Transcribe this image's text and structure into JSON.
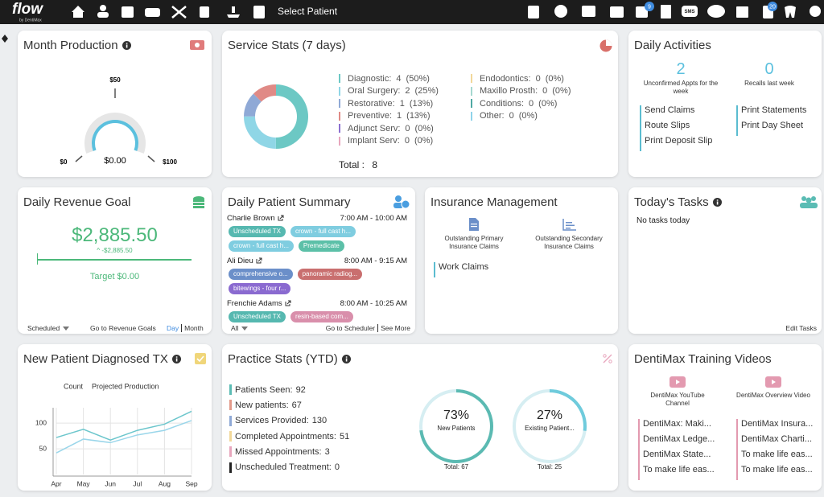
{
  "nav": {
    "logo": "flow",
    "logo_sub": "by DentiMax",
    "select_patient": "Select Patient",
    "sms": "SMS",
    "badge_checks": "9",
    "badge_docs": "20"
  },
  "month_production": {
    "title": "Month Production",
    "gauge": {
      "mid": "$50",
      "min": "$0",
      "max": "$100",
      "value": "$0.00"
    }
  },
  "service_stats": {
    "title": "Service Stats (7 days)",
    "items": [
      {
        "label": "Diagnostic:",
        "count": 4,
        "percent": "(50%)",
        "color": "#6cc8c4"
      },
      {
        "label": "Oral Surgery:",
        "count": 2,
        "percent": "(25%)",
        "color": "#8fd6e6"
      },
      {
        "label": "Restorative:",
        "count": 1,
        "percent": "(13%)",
        "color": "#8fa9d6"
      },
      {
        "label": "Preventive:",
        "count": 1,
        "percent": "(13%)",
        "color": "#e08a86"
      },
      {
        "label": "Adjunct Serv:",
        "count": 0,
        "percent": "(0%)",
        "color": "#8c6fd0"
      },
      {
        "label": "Implant Serv:",
        "count": 0,
        "percent": "(0%)",
        "color": "#e8a6bd"
      },
      {
        "label": "Endodontics:",
        "count": 0,
        "percent": "(0%)",
        "color": "#f2d89a"
      },
      {
        "label": "Maxillo Prosth:",
        "count": 0,
        "percent": "(0%)",
        "color": "#a5d8cf"
      },
      {
        "label": "Conditions:",
        "count": 0,
        "percent": "(0%)",
        "color": "#4fa9a3"
      },
      {
        "label": "Other:",
        "count": 0,
        "percent": "(0%)",
        "color": "#8fd3ea"
      }
    ],
    "total_label": "Total :",
    "total": 8
  },
  "daily_activities": {
    "title": "Daily Activities",
    "stats": [
      {
        "value": 2,
        "label": "Unconfirmed Appts for the week"
      },
      {
        "value": 0,
        "label": "Recalls last week"
      }
    ],
    "links": [
      "Send Claims",
      "Route Slips",
      "Print Deposit Slip",
      "Print Statements",
      "Print Day Sheet"
    ]
  },
  "daily_revenue": {
    "title": "Daily Revenue Goal",
    "amount": "$2,885.50",
    "change": "^ -$2,885.50",
    "target": "Target $0.00",
    "filter": "Scheduled",
    "link": "Go to Revenue Goals",
    "period_day": "Day",
    "period_month": "Month"
  },
  "patient_summary": {
    "title": "Daily Patient Summary",
    "patients": [
      {
        "name": "Charlie Brown",
        "time": "7:00 AM - 10:00 AM",
        "tags": [
          {
            "text": "Unscheduled TX",
            "color": "#56b8b0"
          },
          {
            "text": "crown - full cast h...",
            "color": "#7fcde0"
          },
          {
            "text": "crown - full cast h...",
            "color": "#7fcde0"
          },
          {
            "text": "Premedicate",
            "color": "#5cc0a8"
          }
        ]
      },
      {
        "name": "Ali Dieu",
        "time": "8:00 AM - 9:15 AM",
        "tags": [
          {
            "text": "comprehensive o...",
            "color": "#6b8fc9"
          },
          {
            "text": "panoramic radiog...",
            "color": "#c96f6f"
          },
          {
            "text": "bitewings - four r...",
            "color": "#8a6ad0"
          }
        ]
      },
      {
        "name": "Frenchie Adams",
        "time": "8:00 AM - 10:25 AM",
        "tags": [
          {
            "text": "Unscheduled TX",
            "color": "#56b8b0"
          },
          {
            "text": "resin-based com...",
            "color": "#d98fab"
          }
        ]
      }
    ],
    "filter": "All",
    "scheduler_link": "Go to Scheduler",
    "more_link": "See More"
  },
  "insurance": {
    "title": "Insurance Management",
    "claims": [
      "Outstanding Primary Insurance Claims",
      "Outstanding Secondary Insurance Claims"
    ],
    "work_claims": "Work Claims"
  },
  "todays_tasks": {
    "title": "Today's Tasks",
    "empty": "No tasks today",
    "edit": "Edit Tasks"
  },
  "new_patient_tx": {
    "title": "New Patient Diagnosed TX",
    "chart": {
      "type": "line",
      "categories": [
        "Apr",
        "May",
        "Jun",
        "Jul",
        "Aug",
        "Sep"
      ],
      "series": [
        {
          "name": "Count",
          "color": "#6cc6cc",
          "values": [
            72,
            88,
            67,
            86,
            98,
            123
          ]
        },
        {
          "name": "Projected Production",
          "color": "#9ad6ea",
          "values": [
            42,
            69,
            62,
            77,
            86,
            105
          ]
        }
      ],
      "ylim": [
        0,
        130
      ],
      "yticks": [
        50,
        100
      ],
      "grid": true
    }
  },
  "practice_stats": {
    "title": "Practice Stats (YTD)",
    "items": [
      {
        "label": "Patients Seen:",
        "value": 92,
        "color": "#5bbcb4"
      },
      {
        "label": "New patients:",
        "value": 67,
        "color": "#e39a8a"
      },
      {
        "label": "Services Provided:",
        "value": 130,
        "color": "#8fa9d6"
      },
      {
        "label": "Completed Appointments:",
        "value": 51,
        "color": "#f2d89a"
      },
      {
        "label": "Missed Appointments:",
        "value": 3,
        "color": "#e8a6bd"
      },
      {
        "label": "Unscheduled Treatment:",
        "value": 0,
        "color": "#222222"
      }
    ],
    "rings": [
      {
        "value": 73,
        "value_label": "73%",
        "label": "New Patients",
        "total": "Total: 67",
        "color": "#5bbab2"
      },
      {
        "value": 27,
        "value_label": "27%",
        "label": "Existing Patient...",
        "total": "Total: 25",
        "color": "#6fcbdc"
      }
    ]
  },
  "training": {
    "title": "DentiMax Training Videos",
    "channels": [
      "DentiMax YouTube Channel",
      "DentiMax Overview Video"
    ],
    "videos": [
      "DentiMax: Maki...",
      "DentiMax Ledge...",
      "DentiMax State...",
      "To make life eas...",
      "DentiMax Insura...",
      "DentiMax Charti...",
      "To make life eas...",
      "To make life eas..."
    ]
  }
}
